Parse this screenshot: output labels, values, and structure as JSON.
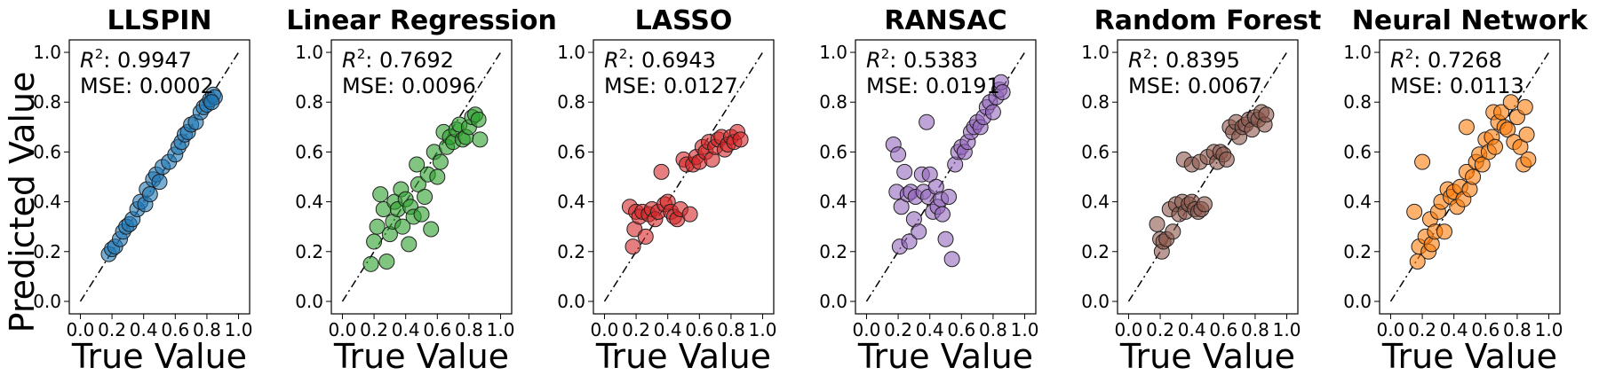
{
  "chart_data": {
    "type": "scatter",
    "shared": {
      "xlabel": "True Value",
      "ylabel": "Predicted Value",
      "xlim": [
        0,
        1.0
      ],
      "ylim": [
        0,
        1.0
      ],
      "ticks": [
        0.0,
        0.2,
        0.4,
        0.6,
        0.8,
        1.0
      ],
      "tick_labels": [
        "0.0",
        "0.2",
        "0.4",
        "0.6",
        "0.8",
        "1.0"
      ],
      "reference_line": "y = x (dash-dot)",
      "r2_label": "R",
      "r2_suffix": ": "
    },
    "panels": [
      {
        "title": "LLSPIN",
        "r2": "0.9947",
        "mse_label": "MSE: 0.0002",
        "color": "#1f77b4",
        "points": [
          [
            0.18,
            0.19
          ],
          [
            0.2,
            0.21
          ],
          [
            0.22,
            0.22
          ],
          [
            0.25,
            0.25
          ],
          [
            0.27,
            0.28
          ],
          [
            0.29,
            0.3
          ],
          [
            0.31,
            0.31
          ],
          [
            0.33,
            0.33
          ],
          [
            0.36,
            0.37
          ],
          [
            0.38,
            0.4
          ],
          [
            0.41,
            0.39
          ],
          [
            0.42,
            0.45
          ],
          [
            0.44,
            0.43
          ],
          [
            0.46,
            0.49
          ],
          [
            0.48,
            0.51
          ],
          [
            0.5,
            0.48
          ],
          [
            0.52,
            0.54
          ],
          [
            0.56,
            0.56
          ],
          [
            0.6,
            0.59
          ],
          [
            0.62,
            0.62
          ],
          [
            0.64,
            0.64
          ],
          [
            0.66,
            0.67
          ],
          [
            0.68,
            0.68
          ],
          [
            0.7,
            0.71
          ],
          [
            0.73,
            0.72
          ],
          [
            0.76,
            0.76
          ],
          [
            0.78,
            0.78
          ],
          [
            0.8,
            0.79
          ],
          [
            0.82,
            0.81
          ],
          [
            0.84,
            0.83
          ],
          [
            0.85,
            0.82
          ],
          [
            0.83,
            0.8
          ]
        ]
      },
      {
        "title": "Linear Regression",
        "r2": "0.7692",
        "mse_label": "MSE: 0.0096",
        "color": "#2ca02c",
        "points": [
          [
            0.18,
            0.15
          ],
          [
            0.2,
            0.24
          ],
          [
            0.22,
            0.3
          ],
          [
            0.24,
            0.43
          ],
          [
            0.26,
            0.37
          ],
          [
            0.28,
            0.16
          ],
          [
            0.3,
            0.27
          ],
          [
            0.32,
            0.32
          ],
          [
            0.33,
            0.4
          ],
          [
            0.35,
            0.37
          ],
          [
            0.37,
            0.45
          ],
          [
            0.38,
            0.3
          ],
          [
            0.4,
            0.41
          ],
          [
            0.42,
            0.23
          ],
          [
            0.43,
            0.38
          ],
          [
            0.45,
            0.34
          ],
          [
            0.47,
            0.55
          ],
          [
            0.48,
            0.47
          ],
          [
            0.5,
            0.35
          ],
          [
            0.52,
            0.42
          ],
          [
            0.54,
            0.51
          ],
          [
            0.56,
            0.29
          ],
          [
            0.58,
            0.6
          ],
          [
            0.6,
            0.5
          ],
          [
            0.62,
            0.56
          ],
          [
            0.64,
            0.68
          ],
          [
            0.66,
            0.62
          ],
          [
            0.68,
            0.66
          ],
          [
            0.7,
            0.64
          ],
          [
            0.72,
            0.69
          ],
          [
            0.74,
            0.71
          ],
          [
            0.76,
            0.65
          ],
          [
            0.78,
            0.66
          ],
          [
            0.8,
            0.7
          ],
          [
            0.82,
            0.74
          ],
          [
            0.84,
            0.75
          ],
          [
            0.86,
            0.73
          ],
          [
            0.87,
            0.65
          ]
        ]
      },
      {
        "title": "LASSO",
        "r2": "0.6943",
        "mse_label": "MSE: 0.0127",
        "color": "#d62728",
        "points": [
          [
            0.16,
            0.38
          ],
          [
            0.18,
            0.22
          ],
          [
            0.19,
            0.29
          ],
          [
            0.2,
            0.36
          ],
          [
            0.22,
            0.34
          ],
          [
            0.24,
            0.36
          ],
          [
            0.26,
            0.26
          ],
          [
            0.28,
            0.35
          ],
          [
            0.3,
            0.37
          ],
          [
            0.32,
            0.33
          ],
          [
            0.34,
            0.36
          ],
          [
            0.36,
            0.52
          ],
          [
            0.38,
            0.39
          ],
          [
            0.4,
            0.4
          ],
          [
            0.42,
            0.36
          ],
          [
            0.44,
            0.34
          ],
          [
            0.46,
            0.33
          ],
          [
            0.48,
            0.37
          ],
          [
            0.5,
            0.57
          ],
          [
            0.52,
            0.55
          ],
          [
            0.54,
            0.35
          ],
          [
            0.56,
            0.55
          ],
          [
            0.58,
            0.58
          ],
          [
            0.6,
            0.56
          ],
          [
            0.62,
            0.62
          ],
          [
            0.64,
            0.6
          ],
          [
            0.66,
            0.64
          ],
          [
            0.68,
            0.57
          ],
          [
            0.7,
            0.62
          ],
          [
            0.72,
            0.65
          ],
          [
            0.74,
            0.66
          ],
          [
            0.76,
            0.61
          ],
          [
            0.78,
            0.63
          ],
          [
            0.8,
            0.66
          ],
          [
            0.82,
            0.64
          ],
          [
            0.84,
            0.68
          ],
          [
            0.86,
            0.65
          ]
        ]
      },
      {
        "title": "RANSAC",
        "r2": "0.5383",
        "mse_label": "MSE: 0.0191",
        "color": "#9467bd",
        "points": [
          [
            0.17,
            0.63
          ],
          [
            0.19,
            0.44
          ],
          [
            0.2,
            0.59
          ],
          [
            0.21,
            0.22
          ],
          [
            0.22,
            0.38
          ],
          [
            0.24,
            0.52
          ],
          [
            0.26,
            0.43
          ],
          [
            0.27,
            0.24
          ],
          [
            0.28,
            0.44
          ],
          [
            0.3,
            0.33
          ],
          [
            0.31,
            0.42
          ],
          [
            0.33,
            0.28
          ],
          [
            0.35,
            0.51
          ],
          [
            0.36,
            0.44
          ],
          [
            0.38,
            0.72
          ],
          [
            0.39,
            0.42
          ],
          [
            0.4,
            0.51
          ],
          [
            0.42,
            0.36
          ],
          [
            0.44,
            0.46
          ],
          [
            0.45,
            0.38
          ],
          [
            0.47,
            0.41
          ],
          [
            0.48,
            0.35
          ],
          [
            0.5,
            0.25
          ],
          [
            0.52,
            0.42
          ],
          [
            0.54,
            0.17
          ],
          [
            0.56,
            0.55
          ],
          [
            0.58,
            0.6
          ],
          [
            0.6,
            0.62
          ],
          [
            0.62,
            0.6
          ],
          [
            0.64,
            0.64
          ],
          [
            0.66,
            0.68
          ],
          [
            0.68,
            0.7
          ],
          [
            0.7,
            0.72
          ],
          [
            0.72,
            0.7
          ],
          [
            0.74,
            0.74
          ],
          [
            0.76,
            0.78
          ],
          [
            0.78,
            0.8
          ],
          [
            0.8,
            0.76
          ],
          [
            0.82,
            0.82
          ],
          [
            0.84,
            0.85
          ],
          [
            0.85,
            0.88
          ],
          [
            0.86,
            0.84
          ]
        ]
      },
      {
        "title": "Random Forest",
        "r2": "0.8395",
        "mse_label": "MSE: 0.0067",
        "color": "#8c564b",
        "points": [
          [
            0.18,
            0.31
          ],
          [
            0.2,
            0.25
          ],
          [
            0.21,
            0.2
          ],
          [
            0.22,
            0.24
          ],
          [
            0.24,
            0.25
          ],
          [
            0.26,
            0.37
          ],
          [
            0.28,
            0.28
          ],
          [
            0.3,
            0.39
          ],
          [
            0.32,
            0.35
          ],
          [
            0.34,
            0.4
          ],
          [
            0.36,
            0.36
          ],
          [
            0.38,
            0.39
          ],
          [
            0.4,
            0.4
          ],
          [
            0.42,
            0.37
          ],
          [
            0.44,
            0.36
          ],
          [
            0.46,
            0.37
          ],
          [
            0.48,
            0.39
          ],
          [
            0.35,
            0.57
          ],
          [
            0.4,
            0.55
          ],
          [
            0.45,
            0.56
          ],
          [
            0.5,
            0.58
          ],
          [
            0.54,
            0.6
          ],
          [
            0.56,
            0.56
          ],
          [
            0.58,
            0.6
          ],
          [
            0.6,
            0.59
          ],
          [
            0.62,
            0.57
          ],
          [
            0.64,
            0.7
          ],
          [
            0.66,
            0.68
          ],
          [
            0.68,
            0.72
          ],
          [
            0.7,
            0.66
          ],
          [
            0.72,
            0.7
          ],
          [
            0.74,
            0.71
          ],
          [
            0.76,
            0.73
          ],
          [
            0.78,
            0.69
          ],
          [
            0.8,
            0.74
          ],
          [
            0.82,
            0.73
          ],
          [
            0.84,
            0.76
          ],
          [
            0.86,
            0.71
          ],
          [
            0.87,
            0.75
          ]
        ]
      },
      {
        "title": "Neural Network",
        "r2": "0.7268",
        "mse_label": "MSE: 0.0113",
        "color": "#ff7f0e",
        "points": [
          [
            0.15,
            0.36
          ],
          [
            0.17,
            0.16
          ],
          [
            0.18,
            0.22
          ],
          [
            0.2,
            0.56
          ],
          [
            0.22,
            0.26
          ],
          [
            0.24,
            0.2
          ],
          [
            0.25,
            0.33
          ],
          [
            0.26,
            0.23
          ],
          [
            0.28,
            0.28
          ],
          [
            0.3,
            0.36
          ],
          [
            0.32,
            0.4
          ],
          [
            0.34,
            0.28
          ],
          [
            0.36,
            0.45
          ],
          [
            0.38,
            0.42
          ],
          [
            0.4,
            0.44
          ],
          [
            0.42,
            0.38
          ],
          [
            0.44,
            0.46
          ],
          [
            0.46,
            0.41
          ],
          [
            0.48,
            0.52
          ],
          [
            0.48,
            0.7
          ],
          [
            0.5,
            0.45
          ],
          [
            0.52,
            0.5
          ],
          [
            0.54,
            0.56
          ],
          [
            0.56,
            0.59
          ],
          [
            0.58,
            0.55
          ],
          [
            0.6,
            0.65
          ],
          [
            0.62,
            0.6
          ],
          [
            0.64,
            0.66
          ],
          [
            0.65,
            0.76
          ],
          [
            0.66,
            0.62
          ],
          [
            0.68,
            0.72
          ],
          [
            0.7,
            0.76
          ],
          [
            0.72,
            0.7
          ],
          [
            0.74,
            0.69
          ],
          [
            0.76,
            0.8
          ],
          [
            0.78,
            0.64
          ],
          [
            0.8,
            0.74
          ],
          [
            0.82,
            0.62
          ],
          [
            0.84,
            0.55
          ],
          [
            0.85,
            0.78
          ],
          [
            0.86,
            0.67
          ],
          [
            0.87,
            0.57
          ]
        ]
      }
    ]
  }
}
